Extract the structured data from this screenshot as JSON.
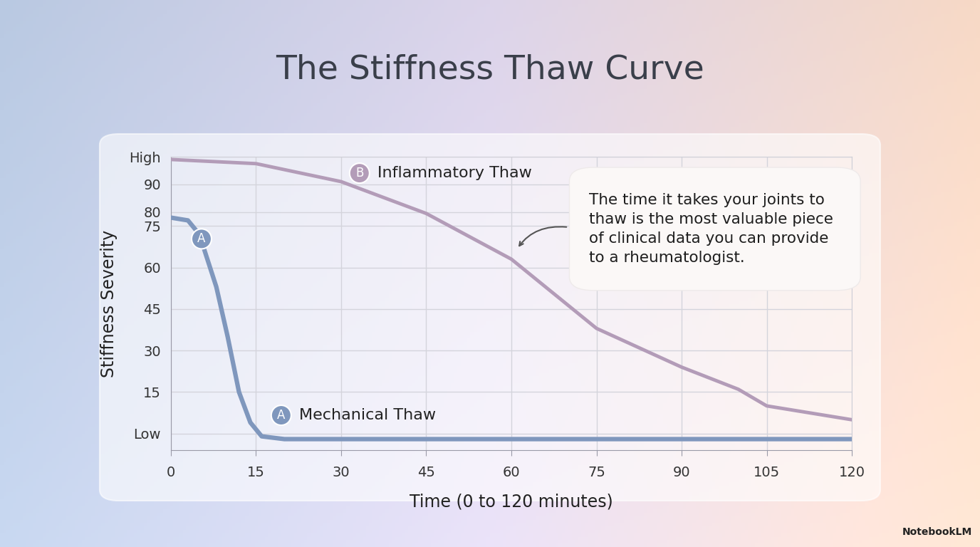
{
  "chart_data": {
    "type": "line",
    "title": "The Stiffness Thaw Curve",
    "x_label": "Time (0 to 120 minutes)",
    "y_label": "Stiffness Severity",
    "annotation": "The time it takes your joints to\nthaw is the most valuable piece\nof clinical data you can provide\nto a rheumatologist.",
    "credit": "NotebookLM",
    "series": [
      {
        "name": "Mechanical Thaw",
        "badge": "A",
        "color": "#7f97bd",
        "x": [
          0,
          3,
          5,
          8,
          10,
          12,
          14,
          16,
          20,
          30,
          45,
          60,
          75,
          90,
          105,
          120
        ],
        "values": [
          78,
          77,
          72,
          53,
          35,
          15,
          4,
          -1,
          -2,
          -2,
          -2,
          -2,
          -2,
          -2,
          -2,
          -2
        ]
      },
      {
        "name": "Inflammatory Thaw",
        "badge": "B",
        "color": "#b39cb8",
        "x": [
          0,
          15,
          30,
          45,
          60,
          75,
          90,
          100,
          105,
          120
        ],
        "values": [
          99,
          97.5,
          91,
          79.5,
          63,
          38,
          24,
          16,
          10,
          5
        ]
      }
    ],
    "xlim": [
      0,
      120
    ],
    "xticks": [
      0,
      15,
      30,
      45,
      60,
      75,
      90,
      105,
      120
    ],
    "ylim": [
      -6,
      100
    ],
    "yticks": [
      {
        "value": 0,
        "label": "Low"
      },
      15,
      30,
      45,
      60,
      75,
      80,
      90,
      {
        "value": 100,
        "label": "High"
      }
    ],
    "grid": true
  }
}
